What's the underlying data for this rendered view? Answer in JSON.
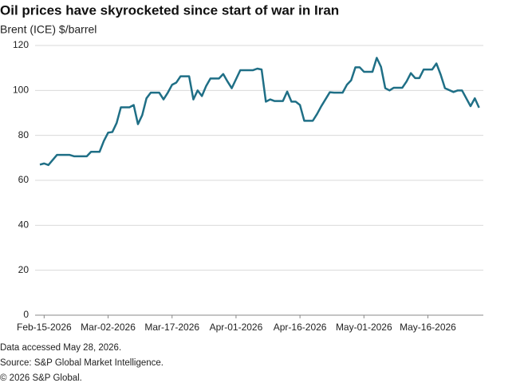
{
  "chart_data": {
    "type": "line",
    "title": "Oil prices have skyrocketed since start of war in Iran",
    "subtitle": "Brent (ICE) $/barrel",
    "notes": [
      "Data accessed May 28, 2026.",
      "Source: S&P Global Market Intelligence.",
      "© 2026 S&P Global."
    ],
    "x": [
      "2026-02-14",
      "2026-02-15",
      "2026-02-16",
      "2026-02-18",
      "2026-02-21",
      "2026-02-22",
      "2026-02-25",
      "2026-02-26",
      "2026-02-28",
      "2026-03-01",
      "2026-03-02",
      "2026-03-03",
      "2026-03-04",
      "2026-03-05",
      "2026-03-07",
      "2026-03-08",
      "2026-03-09",
      "2026-03-10",
      "2026-03-11",
      "2026-03-12",
      "2026-03-14",
      "2026-03-15",
      "2026-03-16",
      "2026-03-17",
      "2026-03-18",
      "2026-03-19",
      "2026-03-21",
      "2026-03-22",
      "2026-03-23",
      "2026-03-24",
      "2026-03-25",
      "2026-03-26",
      "2026-03-28",
      "2026-03-29",
      "2026-03-30",
      "2026-03-31",
      "2026-04-02",
      "2026-04-05",
      "2026-04-06",
      "2026-04-07",
      "2026-04-08",
      "2026-04-09",
      "2026-04-10",
      "2026-04-12",
      "2026-04-13",
      "2026-04-14",
      "2026-04-15",
      "2026-04-16",
      "2026-04-17",
      "2026-04-19",
      "2026-04-20",
      "2026-04-21",
      "2026-04-23",
      "2026-04-24",
      "2026-04-26",
      "2026-04-27",
      "2026-04-28",
      "2026-04-29",
      "2026-04-30",
      "2026-05-01",
      "2026-05-03",
      "2026-05-04",
      "2026-05-05",
      "2026-05-06",
      "2026-05-07",
      "2026-05-08",
      "2026-05-10",
      "2026-05-11",
      "2026-05-12",
      "2026-05-13",
      "2026-05-14",
      "2026-05-15",
      "2026-05-17",
      "2026-05-18",
      "2026-05-19",
      "2026-05-20",
      "2026-05-22",
      "2026-05-23",
      "2026-05-24",
      "2026-05-26",
      "2026-05-27",
      "2026-05-28"
    ],
    "series": [
      {
        "name": "Brent (ICE)",
        "color": "#1f6f86",
        "values": [
          67,
          67.5,
          66.8,
          71.3,
          71.3,
          70.7,
          70.7,
          72.7,
          72.7,
          77.5,
          81.2,
          81.5,
          85.5,
          92.5,
          92.5,
          93.5,
          85,
          89,
          96.5,
          99,
          99,
          96,
          99,
          102.5,
          103.5,
          106.3,
          106.3,
          96,
          100,
          97.5,
          102,
          105.3,
          105.3,
          107.3,
          104,
          101,
          109,
          109,
          109.7,
          109.3,
          95,
          96,
          95.3,
          95.3,
          99.5,
          95,
          95,
          93.5,
          86.5,
          86.5,
          89.5,
          93,
          99.2,
          99,
          99,
          102.5,
          104.5,
          110.3,
          110.3,
          108.3,
          108.3,
          114.5,
          110.5,
          101,
          100,
          101.2,
          101.2,
          104,
          107.7,
          105.5,
          105.5,
          109.3,
          109.3,
          112,
          107,
          101,
          99.3,
          100,
          100,
          93,
          96.5,
          92.3
        ]
      }
    ],
    "xlim": [
      "2026-02-14",
      "2026-05-29"
    ],
    "xticks": [
      {
        "value": "2026-02-15",
        "label": "Feb-15-2026"
      },
      {
        "value": "2026-03-02",
        "label": "Mar-02-2026"
      },
      {
        "value": "2026-03-17",
        "label": "Mar-17-2026"
      },
      {
        "value": "2026-04-01",
        "label": "Apr-01-2026"
      },
      {
        "value": "2026-04-16",
        "label": "Apr-16-2026"
      },
      {
        "value": "2026-05-01",
        "label": "May-01-2026"
      },
      {
        "value": "2026-05-16",
        "label": "May-16-2026"
      }
    ],
    "ylim": [
      0,
      120
    ],
    "yticks": [
      0,
      20,
      40,
      60,
      80,
      100,
      120
    ],
    "grid": true
  }
}
